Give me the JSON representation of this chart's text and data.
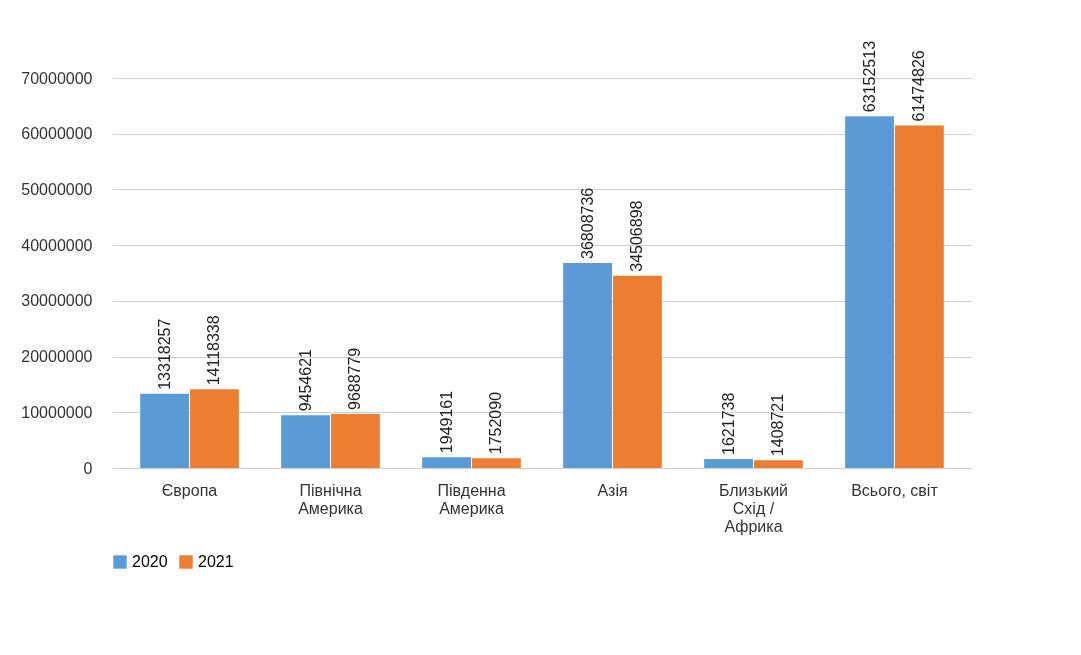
{
  "chart_data": {
    "type": "bar",
    "categories": [
      "Європа",
      "Північна Америка",
      "Південна Америка",
      "Азія",
      "Близький Схід / Африка",
      "Всього, світ"
    ],
    "series": [
      {
        "name": "2020",
        "color": "#5b9bd5",
        "values": [
          13318257,
          9454621,
          1949161,
          36808736,
          1621738,
          63152513
        ]
      },
      {
        "name": "2021",
        "color": "#ed7d31",
        "values": [
          14118338,
          9688779,
          1752090,
          34506898,
          1408721,
          61474826
        ]
      }
    ],
    "ylim": [
      0,
      70000000
    ],
    "yticks": [
      0,
      10000000,
      20000000,
      30000000,
      40000000,
      50000000,
      60000000,
      70000000
    ],
    "grid": "y",
    "legend": "bottom",
    "data_labels": true
  }
}
